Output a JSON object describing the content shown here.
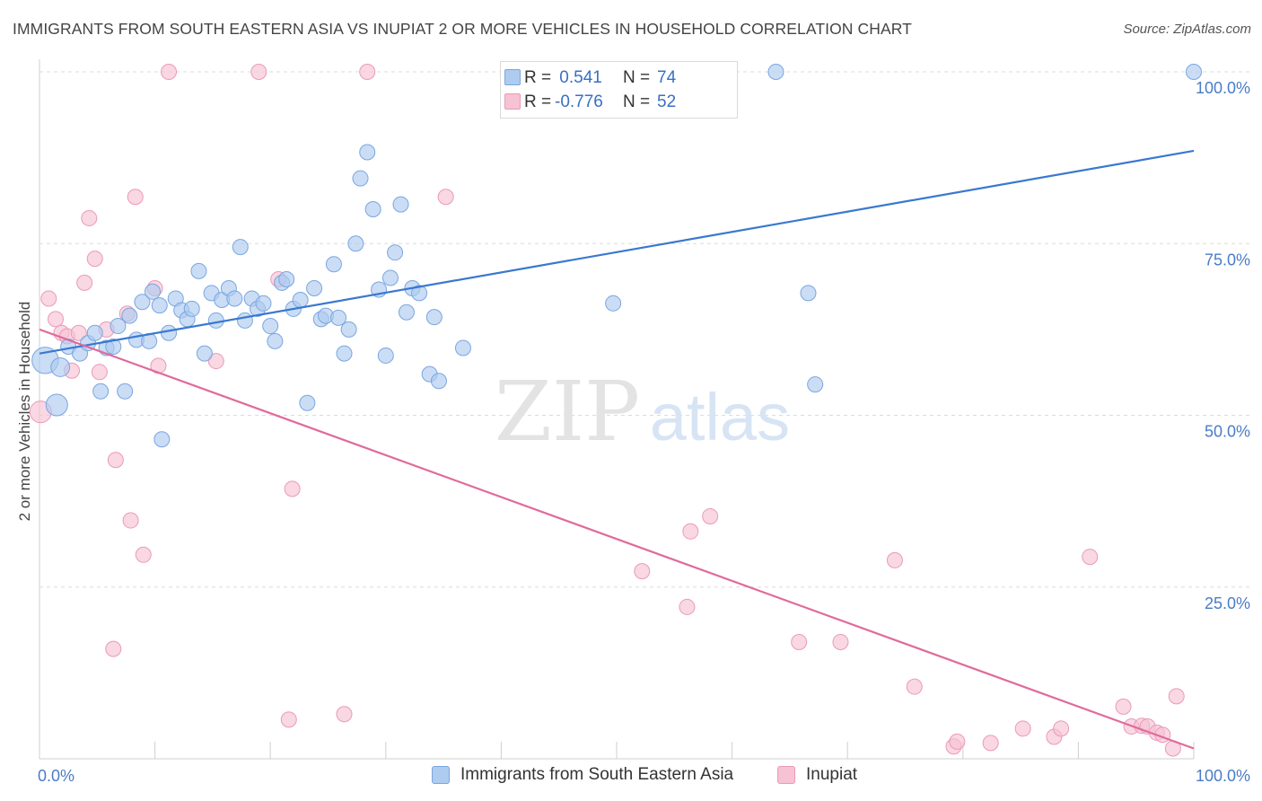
{
  "title": "IMMIGRANTS FROM SOUTH EASTERN ASIA VS INUPIAT 2 OR MORE VEHICLES IN HOUSEHOLD CORRELATION CHART",
  "source": "Source: ZipAtlas.com",
  "watermark": {
    "zip": "ZIP",
    "atlas": "atlas"
  },
  "colors": {
    "blue_fill": "#aecbf0",
    "blue_stroke": "#7aa6e0",
    "blue_line": "#3a78d0",
    "pink_fill": "#f6c2d4",
    "pink_stroke": "#eb9ab8",
    "pink_line": "#e06a9a",
    "tick_text": "#4a7cc7",
    "grid": "#dcdcdc"
  },
  "legend": {
    "rows": [
      {
        "r_label": "R =",
        "r_value": " 0.541",
        "n_label": "N =",
        "n_value": "74"
      },
      {
        "r_label": "R =",
        "r_value": "-0.776",
        "n_label": "N =",
        "n_value": "52"
      }
    ]
  },
  "bottom_legend": [
    "Immigrants from South Eastern Asia",
    "Inupiat"
  ],
  "chart_data": {
    "type": "scatter",
    "title": "IMMIGRANTS FROM SOUTH EASTERN ASIA VS INUPIAT 2 OR MORE VEHICLES IN HOUSEHOLD CORRELATION CHART",
    "xlabel": "",
    "ylabel": "2 or more Vehicles in Household",
    "xlim": [
      0,
      100
    ],
    "ylim": [
      0,
      100
    ],
    "x_tick_labels": [
      "0.0%",
      "100.0%"
    ],
    "y_tick_values": [
      25,
      50,
      75,
      100
    ],
    "y_tick_labels": [
      "25.0%",
      "50.0%",
      "75.0%",
      "100.0%"
    ],
    "grid": "horizontal dashed",
    "legend_position": "top-center",
    "series": [
      {
        "name": "Immigrants from South Eastern Asia",
        "color": "#aecbf0",
        "trend": {
          "x": [
            0,
            100
          ],
          "y": [
            59,
            88.5
          ]
        },
        "points": [
          {
            "x": 0.5,
            "y": 58,
            "s": 3
          },
          {
            "x": 1.5,
            "y": 51.5,
            "s": 2
          },
          {
            "x": 1.8,
            "y": 57,
            "s": 1.5
          },
          {
            "x": 2.5,
            "y": 60,
            "s": 1
          },
          {
            "x": 3.5,
            "y": 59,
            "s": 1
          },
          {
            "x": 4.2,
            "y": 60.5,
            "s": 1
          },
          {
            "x": 4.8,
            "y": 62,
            "s": 1
          },
          {
            "x": 5.3,
            "y": 53.5,
            "s": 1
          },
          {
            "x": 5.8,
            "y": 59.8,
            "s": 1
          },
          {
            "x": 6.4,
            "y": 60,
            "s": 1
          },
          {
            "x": 6.8,
            "y": 63,
            "s": 1
          },
          {
            "x": 7.4,
            "y": 53.5,
            "s": 1
          },
          {
            "x": 7.8,
            "y": 64.5,
            "s": 1
          },
          {
            "x": 8.4,
            "y": 61,
            "s": 1
          },
          {
            "x": 8.9,
            "y": 66.5,
            "s": 1
          },
          {
            "x": 9.5,
            "y": 60.8,
            "s": 1
          },
          {
            "x": 9.8,
            "y": 68,
            "s": 1
          },
          {
            "x": 10.4,
            "y": 66,
            "s": 1
          },
          {
            "x": 10.6,
            "y": 46.5,
            "s": 1
          },
          {
            "x": 11.2,
            "y": 62,
            "s": 1
          },
          {
            "x": 11.8,
            "y": 67,
            "s": 1
          },
          {
            "x": 12.3,
            "y": 65.3,
            "s": 1
          },
          {
            "x": 12.8,
            "y": 64,
            "s": 1
          },
          {
            "x": 13.2,
            "y": 65.5,
            "s": 1
          },
          {
            "x": 13.8,
            "y": 71,
            "s": 1
          },
          {
            "x": 14.3,
            "y": 59,
            "s": 1
          },
          {
            "x": 14.9,
            "y": 67.8,
            "s": 1
          },
          {
            "x": 15.3,
            "y": 63.8,
            "s": 1
          },
          {
            "x": 15.8,
            "y": 66.8,
            "s": 1
          },
          {
            "x": 16.4,
            "y": 68.5,
            "s": 1
          },
          {
            "x": 16.9,
            "y": 67,
            "s": 1
          },
          {
            "x": 17.4,
            "y": 74.5,
            "s": 1
          },
          {
            "x": 17.8,
            "y": 63.8,
            "s": 1
          },
          {
            "x": 18.4,
            "y": 67,
            "s": 1
          },
          {
            "x": 18.9,
            "y": 65.5,
            "s": 1
          },
          {
            "x": 19.4,
            "y": 66.3,
            "s": 1
          },
          {
            "x": 20,
            "y": 63,
            "s": 1
          },
          {
            "x": 20.4,
            "y": 60.8,
            "s": 1
          },
          {
            "x": 21,
            "y": 69.3,
            "s": 1
          },
          {
            "x": 21.4,
            "y": 69.8,
            "s": 1
          },
          {
            "x": 22,
            "y": 65.5,
            "s": 1
          },
          {
            "x": 22.6,
            "y": 66.8,
            "s": 1
          },
          {
            "x": 23.2,
            "y": 51.8,
            "s": 1
          },
          {
            "x": 23.8,
            "y": 68.5,
            "s": 1
          },
          {
            "x": 24.4,
            "y": 64,
            "s": 1
          },
          {
            "x": 24.8,
            "y": 64.5,
            "s": 1
          },
          {
            "x": 25.5,
            "y": 72,
            "s": 1
          },
          {
            "x": 25.9,
            "y": 64.2,
            "s": 1
          },
          {
            "x": 26.4,
            "y": 59,
            "s": 1
          },
          {
            "x": 26.8,
            "y": 62.5,
            "s": 1
          },
          {
            "x": 27.4,
            "y": 75,
            "s": 1
          },
          {
            "x": 27.8,
            "y": 84.5,
            "s": 1
          },
          {
            "x": 28.4,
            "y": 88.3,
            "s": 1
          },
          {
            "x": 28.9,
            "y": 80,
            "s": 1
          },
          {
            "x": 29.4,
            "y": 68.3,
            "s": 1
          },
          {
            "x": 30,
            "y": 58.7,
            "s": 1
          },
          {
            "x": 30.4,
            "y": 70,
            "s": 1
          },
          {
            "x": 30.8,
            "y": 73.7,
            "s": 1
          },
          {
            "x": 31.3,
            "y": 80.7,
            "s": 1
          },
          {
            "x": 31.8,
            "y": 65,
            "s": 1
          },
          {
            "x": 32.3,
            "y": 68.5,
            "s": 1
          },
          {
            "x": 32.9,
            "y": 67.8,
            "s": 1
          },
          {
            "x": 33.8,
            "y": 56,
            "s": 1
          },
          {
            "x": 34.2,
            "y": 64.3,
            "s": 1
          },
          {
            "x": 34.6,
            "y": 55,
            "s": 1
          },
          {
            "x": 36.7,
            "y": 59.8,
            "s": 1
          },
          {
            "x": 49.7,
            "y": 66.3,
            "s": 1
          },
          {
            "x": 63.8,
            "y": 100,
            "s": 1
          },
          {
            "x": 66.6,
            "y": 67.8,
            "s": 1
          },
          {
            "x": 67.2,
            "y": 54.5,
            "s": 1
          },
          {
            "x": 100,
            "y": 100,
            "s": 1
          }
        ]
      },
      {
        "name": "Inupiat",
        "color": "#f6c2d4",
        "trend": {
          "x": [
            0,
            100
          ],
          "y": [
            62.5,
            1.5
          ]
        },
        "points": [
          {
            "x": 0.1,
            "y": 50.5,
            "s": 2
          },
          {
            "x": 0.8,
            "y": 67,
            "s": 1
          },
          {
            "x": 1.4,
            "y": 64,
            "s": 1
          },
          {
            "x": 1.9,
            "y": 62,
            "s": 1
          },
          {
            "x": 2.4,
            "y": 61.5,
            "s": 1
          },
          {
            "x": 2.8,
            "y": 56.5,
            "s": 1
          },
          {
            "x": 3.4,
            "y": 62,
            "s": 1
          },
          {
            "x": 3.9,
            "y": 69.3,
            "s": 1
          },
          {
            "x": 4.3,
            "y": 78.7,
            "s": 1
          },
          {
            "x": 4.8,
            "y": 72.8,
            "s": 1
          },
          {
            "x": 5.2,
            "y": 56.3,
            "s": 1
          },
          {
            "x": 5.8,
            "y": 62.5,
            "s": 1
          },
          {
            "x": 6.4,
            "y": 16,
            "s": 1
          },
          {
            "x": 6.6,
            "y": 43.5,
            "s": 1
          },
          {
            "x": 7.6,
            "y": 64.8,
            "s": 1
          },
          {
            "x": 7.9,
            "y": 34.7,
            "s": 1
          },
          {
            "x": 8.3,
            "y": 81.8,
            "s": 1
          },
          {
            "x": 9,
            "y": 29.7,
            "s": 1
          },
          {
            "x": 10,
            "y": 68.5,
            "s": 1
          },
          {
            "x": 10.3,
            "y": 57.2,
            "s": 1
          },
          {
            "x": 11.2,
            "y": 100,
            "s": 1
          },
          {
            "x": 15.3,
            "y": 57.9,
            "s": 1
          },
          {
            "x": 19,
            "y": 100,
            "s": 1
          },
          {
            "x": 20.7,
            "y": 69.8,
            "s": 1
          },
          {
            "x": 21.6,
            "y": 5.7,
            "s": 1
          },
          {
            "x": 21.9,
            "y": 39.3,
            "s": 1
          },
          {
            "x": 26.4,
            "y": 6.5,
            "s": 1
          },
          {
            "x": 28.4,
            "y": 100,
            "s": 1
          },
          {
            "x": 35.2,
            "y": 81.8,
            "s": 1
          },
          {
            "x": 52.2,
            "y": 27.3,
            "s": 1
          },
          {
            "x": 56.1,
            "y": 22.1,
            "s": 1
          },
          {
            "x": 56.4,
            "y": 33.1,
            "s": 1
          },
          {
            "x": 58.1,
            "y": 35.3,
            "s": 1
          },
          {
            "x": 65.8,
            "y": 17,
            "s": 1
          },
          {
            "x": 69.4,
            "y": 17,
            "s": 1
          },
          {
            "x": 74.1,
            "y": 28.9,
            "s": 1
          },
          {
            "x": 75.8,
            "y": 10.5,
            "s": 1
          },
          {
            "x": 79.2,
            "y": 1.8,
            "s": 1
          },
          {
            "x": 79.5,
            "y": 2.5,
            "s": 1
          },
          {
            "x": 82.4,
            "y": 2.3,
            "s": 1
          },
          {
            "x": 85.2,
            "y": 4.4,
            "s": 1
          },
          {
            "x": 87.9,
            "y": 3.2,
            "s": 1
          },
          {
            "x": 88.5,
            "y": 4.4,
            "s": 1
          },
          {
            "x": 91,
            "y": 29.4,
            "s": 1
          },
          {
            "x": 93.9,
            "y": 7.6,
            "s": 1
          },
          {
            "x": 94.6,
            "y": 4.7,
            "s": 1
          },
          {
            "x": 95.5,
            "y": 4.8,
            "s": 1
          },
          {
            "x": 96,
            "y": 4.7,
            "s": 1
          },
          {
            "x": 96.8,
            "y": 3.8,
            "s": 1
          },
          {
            "x": 97.3,
            "y": 3.5,
            "s": 1
          },
          {
            "x": 98.2,
            "y": 1.5,
            "s": 1
          },
          {
            "x": 98.5,
            "y": 9.1,
            "s": 1
          }
        ]
      }
    ]
  }
}
